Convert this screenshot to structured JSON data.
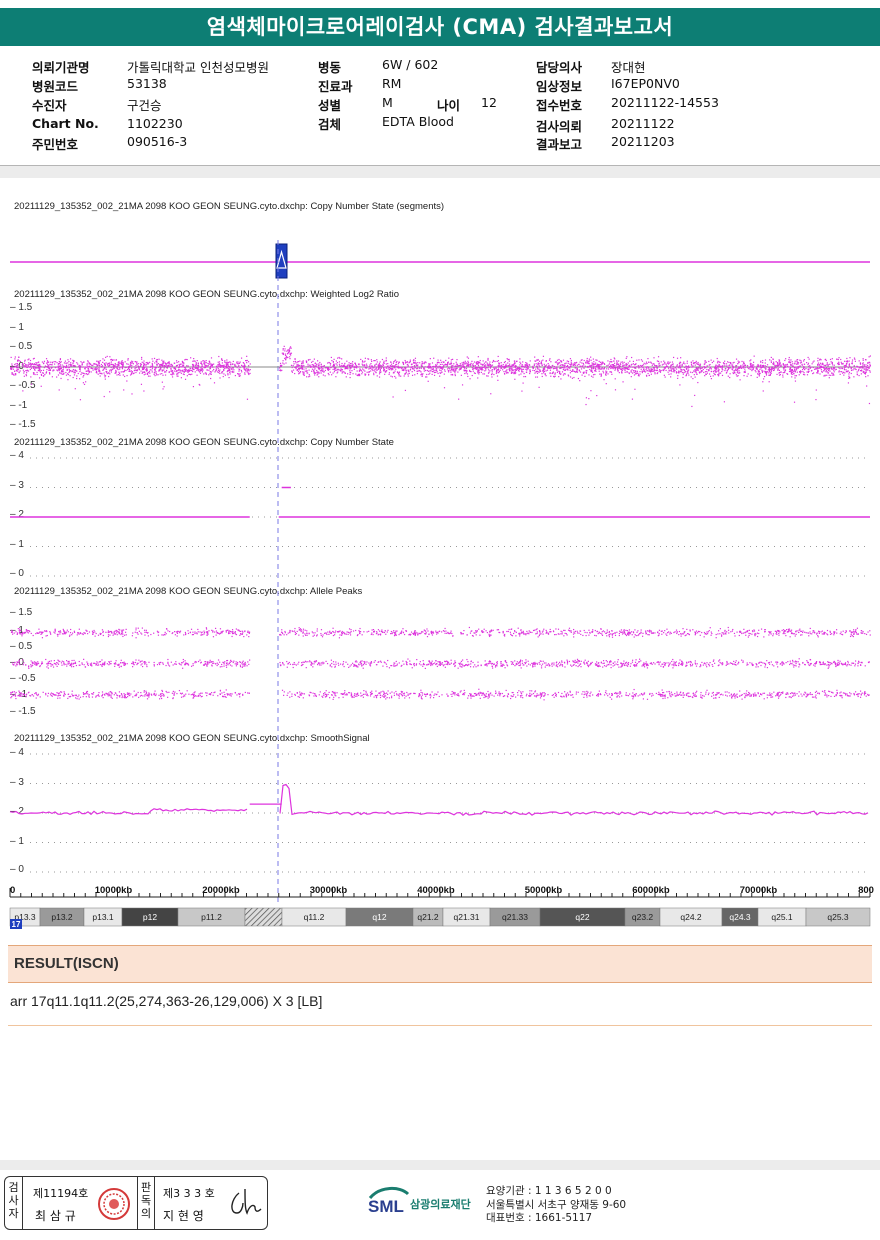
{
  "report": {
    "title": "염색체마이크로어레이검사 (CMA) 검사결과보고서"
  },
  "info": {
    "hospital_label": "의뢰기관명",
    "hospital": "가톨릭대학교 인천성모병원",
    "code_label": "병원코드",
    "code": "53138",
    "patient_label": "수진자",
    "patient": "구건승",
    "chart_label": "Chart No.",
    "chart": "1102230",
    "rrn_label": "주민번호",
    "rrn": "090516-3",
    "ward_label": "병동",
    "ward": "6W / 602",
    "dept_label": "진료과",
    "dept": "RM",
    "sex_label": "성별",
    "sex": "M",
    "age_label": "나이",
    "age": "12",
    "specimen_label": "검체",
    "specimen": "EDTA Blood",
    "doctor_label": "담당의사",
    "doctor": "장대현",
    "clinical_label": "임상정보",
    "clinical": "I67EP0NV0",
    "receipt_label": "접수번호",
    "receipt": "20211122-14553",
    "request_label": "검사의뢰",
    "request": "20211122",
    "report_label": "결과보고",
    "report_date": "20211203"
  },
  "chart_data": {
    "type": "scatter",
    "chromosome": "17",
    "panels": [
      {
        "title": "20211129_135352_002_21MA 2098 KOO GEON SEUNG.cyto.dxchp: Copy Number State (segments)",
        "ticks": []
      },
      {
        "title": "20211129_135352_002_21MA 2098 KOO GEON SEUNG.cyto.dxchp: Weighted Log2 Ratio",
        "ticks": [
          "1.5",
          "1",
          "0.5",
          "0",
          "-0.5",
          "-1",
          "-1.5"
        ],
        "ylim": [
          -1.5,
          1.5
        ]
      },
      {
        "title": "20211129_135352_002_21MA 2098 KOO GEON SEUNG.cyto.dxchp: Copy Number State",
        "ticks": [
          "4",
          "3",
          "2",
          "1",
          "0"
        ],
        "ylim": [
          0,
          4
        ]
      },
      {
        "title": "20211129_135352_002_21MA 2098 KOO GEON SEUNG.cyto.dxchp: Allele Peaks",
        "ticks": [
          "1.5",
          "1",
          "0.5",
          "0",
          "-0.5",
          "-1",
          "-1.5"
        ],
        "ylim": [
          -1.5,
          1.5
        ]
      },
      {
        "title": "20211129_135352_002_21MA 2098 KOO GEON SEUNG.cyto.dxchp: SmoothSignal",
        "ticks": [
          "4",
          "3",
          "2",
          "1",
          "0"
        ],
        "ylim": [
          0,
          4
        ]
      }
    ],
    "x_axis": {
      "labels": [
        "0",
        "10000kb",
        "20000kb",
        "30000kb",
        "40000kb",
        "50000kb",
        "60000kb",
        "70000kb",
        "800"
      ],
      "range_kb": [
        0,
        80000
      ]
    },
    "gain_region_kb": [
      25274,
      26129
    ],
    "gain_copy_number": 3,
    "normal_copy_number": 2,
    "series_color": "#dd33dd",
    "bands": [
      "p13.3",
      "p13.2",
      "p13.1",
      "p12",
      "p11.2",
      "q11.2",
      "q12",
      "q21.2",
      "q21.31",
      "q21.33",
      "q22",
      "q23.2",
      "q24.2",
      "q24.3",
      "q25.1",
      "q25.3"
    ]
  },
  "result": {
    "heading": "RESULT(ISCN)",
    "iscn": "arr 17q11.1q11.2(25,274,363-26,129,006) X 3 [LB]"
  },
  "footer": {
    "tester_label": "검사자",
    "tester_no": "제11194호",
    "tester_name": "최 삼 규",
    "reviewer_label": "판독의",
    "reviewer_no": "제3 3 3 호",
    "reviewer_name": "지 현 영",
    "logo": "SML",
    "org_name": "삼광의료재단",
    "code_line": "요양기관 : 1 1 3 6 5 2 0 0",
    "address": "서울특별시 서초구 양재동 9-60",
    "phone": "대표번호 : 1661-5117"
  }
}
